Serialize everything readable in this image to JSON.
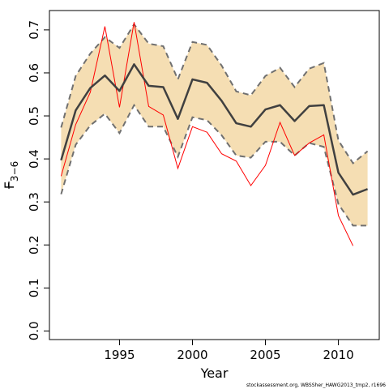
{
  "chart_data": {
    "type": "line",
    "xlabel": "Year",
    "ylabel": {
      "main": "F",
      "subscript": "3−6"
    },
    "xlim": [
      1990.2,
      2012.8
    ],
    "ylim": [
      -0.02,
      0.745
    ],
    "x_ticks": [
      1995,
      2000,
      2005,
      2010
    ],
    "y_ticks": [
      0.0,
      0.1,
      0.2,
      0.3,
      0.4,
      0.5,
      0.6,
      0.7
    ],
    "y_tick_labels": [
      "0.0",
      "0.1",
      "0.2",
      "0.3",
      "0.4",
      "0.5",
      "0.6",
      "0.7"
    ],
    "grid": false,
    "colors": {
      "band": "#f5deb3",
      "bounds": "#707070",
      "estimate": "#404040",
      "retro": "#ff0000"
    },
    "x": [
      1991,
      1992,
      1993,
      1994,
      1995,
      1996,
      1997,
      1998,
      1999,
      2000,
      2001,
      2002,
      2003,
      2004,
      2005,
      2006,
      2007,
      2008,
      2009,
      2010,
      2011,
      2012
    ],
    "series": [
      {
        "role": "estimate",
        "values": [
          0.397,
          0.513,
          0.565,
          0.594,
          0.558,
          0.62,
          0.57,
          0.567,
          0.493,
          0.585,
          0.577,
          0.535,
          0.483,
          0.475,
          0.515,
          0.525,
          0.488,
          0.523,
          0.525,
          0.368,
          0.317,
          0.33
        ]
      },
      {
        "role": "upper",
        "values": [
          0.473,
          0.593,
          0.645,
          0.683,
          0.658,
          0.713,
          0.668,
          0.662,
          0.585,
          0.672,
          0.665,
          0.617,
          0.557,
          0.548,
          0.593,
          0.612,
          0.567,
          0.61,
          0.623,
          0.443,
          0.39,
          0.418
        ]
      },
      {
        "role": "lower",
        "values": [
          0.318,
          0.433,
          0.478,
          0.505,
          0.46,
          0.525,
          0.475,
          0.475,
          0.405,
          0.497,
          0.49,
          0.455,
          0.408,
          0.403,
          0.44,
          0.44,
          0.408,
          0.437,
          0.428,
          0.295,
          0.245,
          0.245
        ]
      },
      {
        "role": "retrospective",
        "x": [
          1991,
          1992,
          1993,
          1994,
          1995,
          1996,
          1997,
          1998,
          1999,
          2000,
          2001,
          2002,
          2003,
          2004,
          2005,
          2006,
          2007,
          2008,
          2009,
          2010,
          2011
        ],
        "values": [
          0.36,
          0.48,
          0.555,
          0.708,
          0.52,
          0.718,
          0.522,
          0.502,
          0.378,
          0.475,
          0.462,
          0.412,
          0.395,
          0.338,
          0.385,
          0.485,
          0.408,
          0.437,
          0.456,
          0.268,
          0.198
        ]
      }
    ],
    "credit": "stockassessment.org, WBSSher_HAWG2013_tmp2, r1696"
  }
}
